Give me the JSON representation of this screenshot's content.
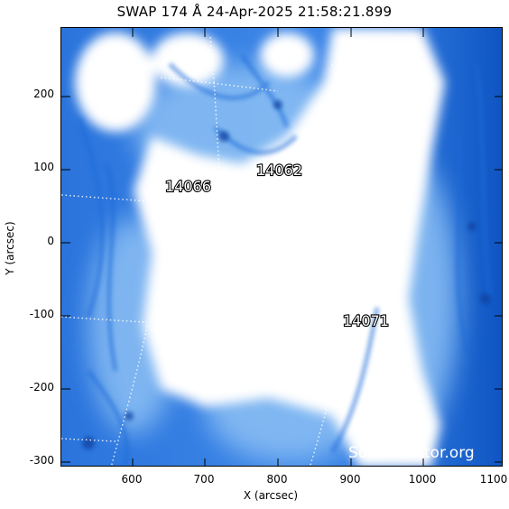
{
  "figure": {
    "title": "SWAP 174 Å 24-Apr-2025 21:58:21.899",
    "xlabel": "X (arcsec)",
    "ylabel": "Y (arcsec)",
    "x_ticks": [
      "600",
      "700",
      "800",
      "900",
      "1000",
      "1100"
    ],
    "y_ticks": [
      "200",
      "100",
      "0",
      "-100",
      "-200",
      "-300"
    ],
    "watermark": "SolarMonitor.org"
  },
  "active_regions": [
    {
      "label": "14066"
    },
    {
      "label": "14062"
    },
    {
      "label": "14071"
    }
  ],
  "colors": {
    "bright": "#ffffff",
    "mid": "#6aaaf0",
    "deep": "#1a66d8",
    "darkest": "#0d4fb8",
    "grid": "#ffffff"
  }
}
